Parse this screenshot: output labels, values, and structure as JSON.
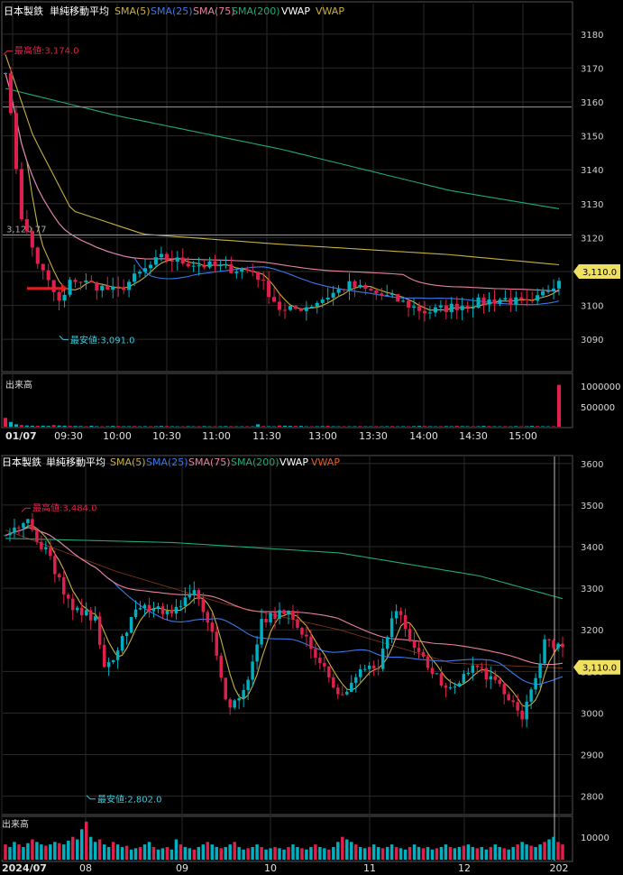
{
  "colors": {
    "background": "#000000",
    "grid": "#2a2a2a",
    "axis_text": "#d0d0d0",
    "up": "#00b0c0",
    "down": "#e0204c",
    "sma5": "#c8b040",
    "sma25": "#3a78e8",
    "sma75": "#e880a0",
    "sma200": "#20a878",
    "vwap": "#ffffff",
    "vwap2": "#c8b040",
    "vwap_lower": "#e06020",
    "high_label": "#e0204c",
    "low_label": "#40c8d8",
    "price_tag_bg": "#f0e060",
    "marker": "#e02020"
  },
  "chart_data": [
    {
      "type": "candlestick",
      "panel": "intraday",
      "legend": {
        "symbol": "日本製鉄",
        "study": "単純移動平均",
        "items": [
          {
            "label": "SMA(5)",
            "color": "sma5"
          },
          {
            "label": "SMA(25)",
            "color": "sma25"
          },
          {
            "label": "SMA(75)",
            "color": "sma75"
          },
          {
            "label": "SMA(200)",
            "color": "sma200"
          },
          {
            "label": "VWAP",
            "color": "vwap"
          },
          {
            "label": "VWAP",
            "color": "vwap2"
          }
        ]
      },
      "y_ticks": [
        3090,
        3100,
        3110,
        3120,
        3130,
        3140,
        3150,
        3160,
        3170,
        3180
      ],
      "ylim": [
        3081,
        3189
      ],
      "x_ticks": [
        "01/07",
        "09:30",
        "10:00",
        "10:30",
        "11:00",
        "11:30",
        "13:00",
        "13:30",
        "14:00",
        "14:30",
        "15:00"
      ],
      "last_price": "3,110.0",
      "last_value": 3110,
      "high": {
        "label": "最高値:3,174.0",
        "value": 3174.0
      },
      "low": {
        "label": "最安値:3,091.0",
        "value": 3091.0
      },
      "ref_line": {
        "label": "3,120.77",
        "value": 3120.77
      },
      "upper_line": 3158.5,
      "marker_value": 3105,
      "volume": {
        "label": "出来高",
        "ticks": [
          "1000000",
          "500000"
        ],
        "max": 1200000,
        "values": [
          220000,
          120000,
          60000,
          40000,
          30000,
          25000,
          20000,
          25000,
          20000,
          40000,
          30000,
          25000,
          20000,
          18000,
          15000,
          12000,
          25000,
          12000,
          10000,
          12000,
          20000,
          15000,
          12000,
          12000,
          15000,
          10000,
          12000,
          10000,
          12000,
          20000,
          15000,
          12000,
          10000,
          10000,
          12000,
          10000,
          12000,
          15000,
          10000,
          10000,
          12000,
          15000,
          12000,
          10000,
          10000,
          12000,
          10000,
          60000,
          15000,
          12000,
          10000,
          30000,
          25000,
          20000,
          18000,
          20000,
          10000,
          10000,
          12000,
          15000,
          20000,
          12000,
          10000,
          10000,
          10000,
          12000,
          15000,
          10000,
          10000,
          12000,
          10000,
          12000,
          15000,
          10000,
          12000,
          10000,
          15000,
          20000,
          15000,
          12000,
          10000,
          12000,
          15000,
          12000,
          20000,
          15000,
          12000,
          10000,
          12000,
          20000,
          15000,
          12000,
          10000,
          12000,
          10000,
          15000,
          10000,
          12000,
          20000,
          15000,
          12000,
          10000,
          12000,
          1050000
        ]
      }
    },
    {
      "type": "candlestick",
      "panel": "daily",
      "legend": {
        "symbol": "日本製鉄",
        "study": "単純移動平均",
        "items": [
          {
            "label": "SMA(5)",
            "color": "sma5"
          },
          {
            "label": "SMA(25)",
            "color": "sma25"
          },
          {
            "label": "SMA(75)",
            "color": "sma75"
          },
          {
            "label": "SMA(200)",
            "color": "sma200"
          },
          {
            "label": "VWAP",
            "color": "vwap"
          },
          {
            "label": "VWAP",
            "color": "vwap_lower"
          }
        ]
      },
      "y_ticks": [
        2800,
        2900,
        3000,
        3100,
        3200,
        3300,
        3400,
        3500,
        3600
      ],
      "ylim": [
        2758,
        3617
      ],
      "x_ticks": [
        "2024/07",
        "08",
        "09",
        "10",
        "11",
        "12",
        "202"
      ],
      "last_price": "3,110.0",
      "last_value": 3110,
      "high": {
        "label": "最高値:3,484.0",
        "value": 3484.0
      },
      "low": {
        "label": "最安値:2,802.0",
        "value": 2802.0
      },
      "volume": {
        "label": "出来高",
        "ticks": [
          "10000"
        ],
        "max": 16000,
        "values": [
          6000,
          5000,
          7000,
          6000,
          5000,
          6500,
          8000,
          7000,
          6000,
          5500,
          6000,
          7000,
          6500,
          6000,
          7500,
          9000,
          8000,
          12000,
          15000,
          9000,
          7000,
          8000,
          6000,
          5000,
          7000,
          6000,
          5000,
          5500,
          4000,
          4500,
          5000,
          6000,
          7000,
          5000,
          4000,
          4500,
          5000,
          4000,
          8000,
          6000,
          5000,
          4500,
          4000,
          5000,
          6000,
          7000,
          6000,
          5000,
          4500,
          5000,
          6000,
          7000,
          5000,
          4000,
          4500,
          5000,
          6000,
          5000,
          4000,
          4500,
          5000,
          4500,
          4000,
          5000,
          6000,
          5000,
          4500,
          4000,
          5000,
          6000,
          5000,
          4500,
          4000,
          5000,
          7000,
          9000,
          8000,
          7000,
          6000,
          5000,
          4500,
          5000,
          6000,
          5000,
          4500,
          5000,
          6000,
          5000,
          4500,
          4000,
          5000,
          6000,
          5000,
          4500,
          5000,
          4000,
          4500,
          5000,
          6000,
          5000,
          4500,
          5000,
          5500,
          6000,
          5000,
          4500,
          5000,
          4000,
          5000,
          6000,
          5000,
          4500,
          4000,
          5000,
          6000,
          7000,
          6000,
          5500,
          5000,
          6000,
          7000,
          8000,
          9000,
          7000,
          6000
        ]
      }
    }
  ]
}
